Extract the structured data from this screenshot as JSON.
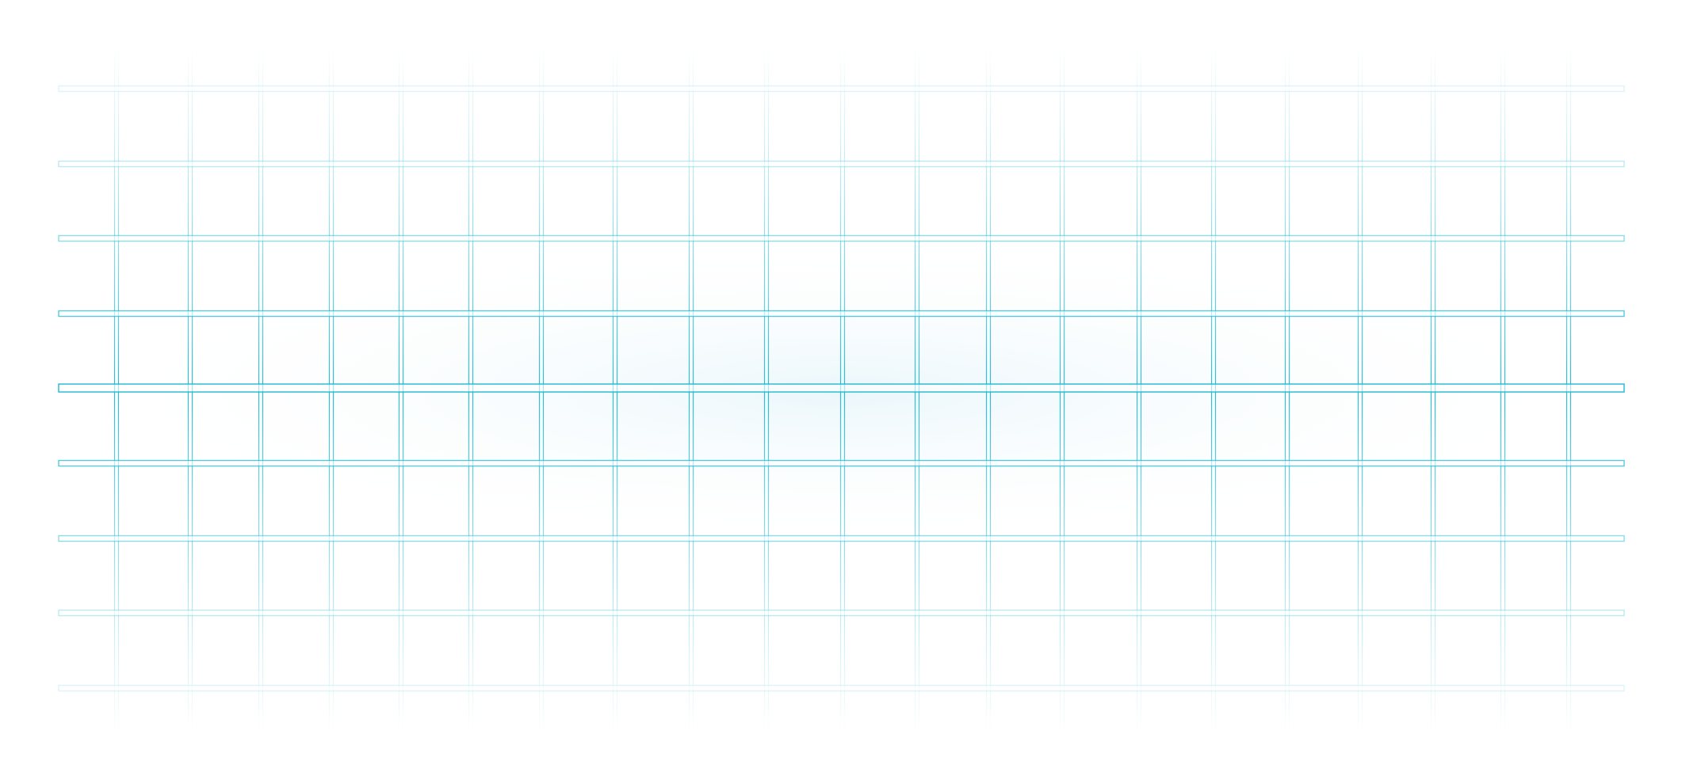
{
  "canvas": {
    "background": "#ffffff",
    "grid_color": "#1fb8d2",
    "glow_color": "#e9f6fb"
  },
  "grid": {
    "horizontal_bars": 9,
    "vertical_bars": 21,
    "fade": "edges"
  }
}
